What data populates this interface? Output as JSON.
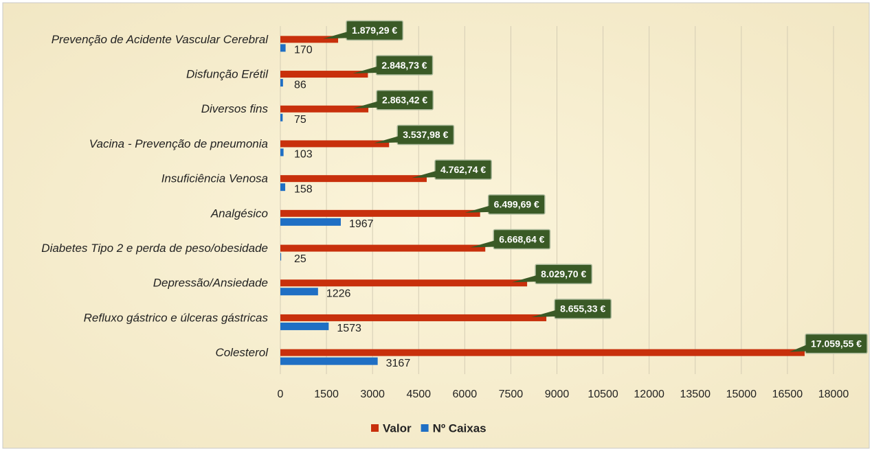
{
  "chart_data": {
    "type": "bar",
    "orientation": "horizontal",
    "categories": [
      "Prevenção de Acidente Vascular Cerebral",
      "Disfunção Erétil",
      "Diversos fins",
      "Vacina - Prevenção de pneumonia",
      "Insuficiência Venosa",
      "Analgésico",
      "Diabetes Tipo 2 e perda de peso/obesidade",
      "Depressão/Ansiedade",
      "Refluxo gástrico e úlceras gástricas",
      "Colesterol"
    ],
    "series": [
      {
        "name": "Valor",
        "color": "#c8300c",
        "values": [
          1879.29,
          2848.73,
          2863.42,
          3537.98,
          4762.74,
          6499.69,
          6668.64,
          8029.7,
          8655.33,
          17059.55
        ],
        "value_labels": [
          "1.879,29 €",
          "2.848,73 €",
          "2.863,42 €",
          "3.537,98 €",
          "4.762,74 €",
          "6.499,69 €",
          "6.668,64 €",
          "8.029,70 €",
          "8.655,33 €",
          "17.059,55 €"
        ]
      },
      {
        "name": "Nº Caixas",
        "color": "#1f6fc4",
        "values": [
          170,
          86,
          75,
          103,
          158,
          1967,
          25,
          1226,
          1573,
          3167
        ]
      }
    ],
    "xlim": [
      0,
      18000
    ],
    "xticks": [
      0,
      1500,
      3000,
      4500,
      6000,
      7500,
      9000,
      10500,
      12000,
      13500,
      15000,
      16500,
      18000
    ],
    "grid": true,
    "legend": "bottom"
  }
}
